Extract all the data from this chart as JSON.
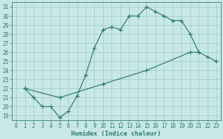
{
  "line1_x": [
    1,
    2,
    3,
    4,
    5,
    6,
    7,
    8,
    9,
    10,
    11,
    12,
    13,
    14,
    15,
    16,
    17,
    18,
    19,
    20,
    21
  ],
  "line1_y": [
    22,
    21,
    20,
    20,
    18.8,
    19.5,
    21.2,
    23.5,
    26.5,
    28.5,
    28.8,
    28.5,
    30,
    30,
    31,
    30.5,
    30,
    29.5,
    29.5,
    28,
    26
  ],
  "line2_x": [
    1,
    5,
    10,
    15,
    20,
    21,
    22,
    23
  ],
  "line2_y": [
    22,
    21,
    22.5,
    24,
    26,
    26,
    25.5,
    25
  ],
  "line_color": "#2d7a6e",
  "bg_color": "#c8e8e8",
  "grid_color": "#9ac8c0",
  "xlabel": "Humidex (Indice chaleur)",
  "ylabel_ticks": [
    19,
    20,
    21,
    22,
    23,
    24,
    25,
    26,
    27,
    28,
    29,
    30,
    31
  ],
  "xlabel_ticks": [
    0,
    1,
    2,
    3,
    4,
    5,
    6,
    7,
    8,
    9,
    10,
    11,
    12,
    13,
    14,
    15,
    16,
    17,
    18,
    19,
    20,
    21,
    22,
    23
  ],
  "xlim": [
    -0.5,
    23.5
  ],
  "ylim": [
    18.5,
    31.5
  ],
  "figsize": [
    3.2,
    2.0
  ],
  "dpi": 100,
  "marker": "+",
  "markersize": 4,
  "linewidth": 0.9,
  "tick_fontsize": 5.5,
  "label_fontsize": 6.5
}
